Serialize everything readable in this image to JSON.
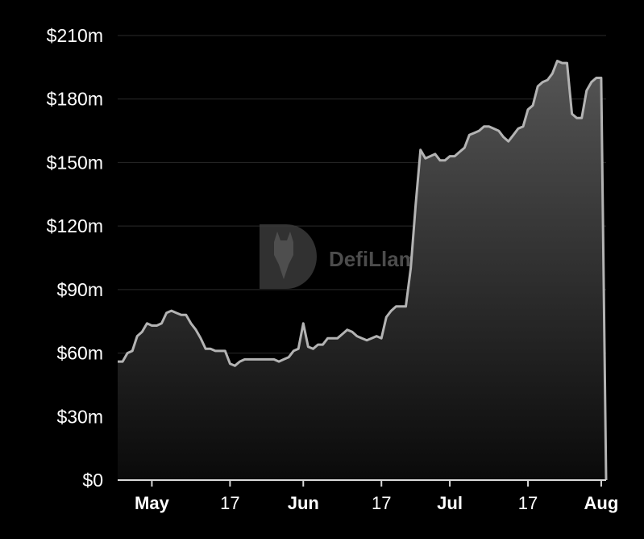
{
  "chart_data": {
    "type": "area",
    "title": "",
    "xlabel": "",
    "ylabel": "",
    "watermark": "DefiLlama",
    "colors": {
      "background": "#000000",
      "line": "#b3b3b3",
      "fill_top": "#555555",
      "fill_bottom": "#0a0a0a",
      "grid": "#2a2a2a",
      "text": "#ffffff"
    },
    "grid": true,
    "ylim": [
      0,
      210
    ],
    "y_unit": "$m",
    "y_ticks": [
      {
        "value": 0,
        "label": "$0"
      },
      {
        "value": 30,
        "label": "$30m"
      },
      {
        "value": 60,
        "label": "$60m"
      },
      {
        "value": 90,
        "label": "$90m"
      },
      {
        "value": 120,
        "label": "$120m"
      },
      {
        "value": 150,
        "label": "$150m"
      },
      {
        "value": 180,
        "label": "$180m"
      },
      {
        "value": 210,
        "label": "$210m"
      }
    ],
    "x_ticks": [
      {
        "date": "May 1",
        "label": "May",
        "bold": true
      },
      {
        "date": "May 17",
        "label": "17",
        "bold": false
      },
      {
        "date": "Jun 1",
        "label": "Jun",
        "bold": true
      },
      {
        "date": "Jun 17",
        "label": "17",
        "bold": false
      },
      {
        "date": "Jul 1",
        "label": "Jul",
        "bold": true
      },
      {
        "date": "Jul 17",
        "label": "17",
        "bold": false
      },
      {
        "date": "Aug 1",
        "label": "Aug",
        "bold": true
      }
    ],
    "series": [
      {
        "points": [
          [
            "Apr 24",
            56
          ],
          [
            "Apr 25",
            56
          ],
          [
            "Apr 26",
            60
          ],
          [
            "Apr 27",
            61
          ],
          [
            "Apr 28",
            68
          ],
          [
            "Apr 29",
            70
          ],
          [
            "Apr 30",
            74
          ],
          [
            "May 1",
            73
          ],
          [
            "May 2",
            73
          ],
          [
            "May 3",
            74
          ],
          [
            "May 4",
            79
          ],
          [
            "May 5",
            80
          ],
          [
            "May 6",
            79
          ],
          [
            "May 7",
            78
          ],
          [
            "May 8",
            78
          ],
          [
            "May 9",
            74
          ],
          [
            "May 10",
            71
          ],
          [
            "May 11",
            67
          ],
          [
            "May 12",
            62
          ],
          [
            "May 13",
            62
          ],
          [
            "May 14",
            61
          ],
          [
            "May 15",
            61
          ],
          [
            "May 16",
            61
          ],
          [
            "May 17",
            55
          ],
          [
            "May 18",
            54
          ],
          [
            "May 19",
            56
          ],
          [
            "May 20",
            57
          ],
          [
            "May 21",
            57
          ],
          [
            "May 22",
            57
          ],
          [
            "May 23",
            57
          ],
          [
            "May 24",
            57
          ],
          [
            "May 25",
            57
          ],
          [
            "May 26",
            57
          ],
          [
            "May 27",
            56
          ],
          [
            "May 28",
            57
          ],
          [
            "May 29",
            58
          ],
          [
            "May 30",
            61
          ],
          [
            "May 31",
            62
          ],
          [
            "Jun 1",
            74
          ],
          [
            "Jun 2",
            63
          ],
          [
            "Jun 3",
            62
          ],
          [
            "Jun 4",
            64
          ],
          [
            "Jun 5",
            64
          ],
          [
            "Jun 6",
            67
          ],
          [
            "Jun 7",
            67
          ],
          [
            "Jun 8",
            67
          ],
          [
            "Jun 9",
            69
          ],
          [
            "Jun 10",
            71
          ],
          [
            "Jun 11",
            70
          ],
          [
            "Jun 12",
            68
          ],
          [
            "Jun 13",
            67
          ],
          [
            "Jun 14",
            66
          ],
          [
            "Jun 15",
            67
          ],
          [
            "Jun 16",
            68
          ],
          [
            "Jun 17",
            67
          ],
          [
            "Jun 18",
            77
          ],
          [
            "Jun 19",
            80
          ],
          [
            "Jun 20",
            82
          ],
          [
            "Jun 21",
            82
          ],
          [
            "Jun 22",
            82
          ],
          [
            "Jun 23",
            100
          ],
          [
            "Jun 24",
            130
          ],
          [
            "Jun 25",
            156
          ],
          [
            "Jun 26",
            152
          ],
          [
            "Jun 27",
            153
          ],
          [
            "Jun 28",
            154
          ],
          [
            "Jun 29",
            151
          ],
          [
            "Jun 30",
            151
          ],
          [
            "Jul 1",
            153
          ],
          [
            "Jul 2",
            153
          ],
          [
            "Jul 3",
            155
          ],
          [
            "Jul 4",
            157
          ],
          [
            "Jul 5",
            163
          ],
          [
            "Jul 6",
            164
          ],
          [
            "Jul 7",
            165
          ],
          [
            "Jul 8",
            167
          ],
          [
            "Jul 9",
            167
          ],
          [
            "Jul 10",
            166
          ],
          [
            "Jul 11",
            165
          ],
          [
            "Jul 12",
            162
          ],
          [
            "Jul 13",
            160
          ],
          [
            "Jul 14",
            163
          ],
          [
            "Jul 15",
            166
          ],
          [
            "Jul 16",
            167
          ],
          [
            "Jul 17",
            175
          ],
          [
            "Jul 18",
            177
          ],
          [
            "Jul 19",
            186
          ],
          [
            "Jul 20",
            188
          ],
          [
            "Jul 21",
            189
          ],
          [
            "Jul 22",
            192
          ],
          [
            "Jul 23",
            198
          ],
          [
            "Jul 24",
            197
          ],
          [
            "Jul 25",
            197
          ],
          [
            "Jul 26",
            173
          ],
          [
            "Jul 27",
            171
          ],
          [
            "Jul 28",
            171
          ],
          [
            "Jul 29",
            184
          ],
          [
            "Jul 30",
            188
          ],
          [
            "Jul 31",
            190
          ],
          [
            "Aug 1",
            190
          ],
          [
            "Aug 2",
            0
          ]
        ]
      }
    ]
  }
}
